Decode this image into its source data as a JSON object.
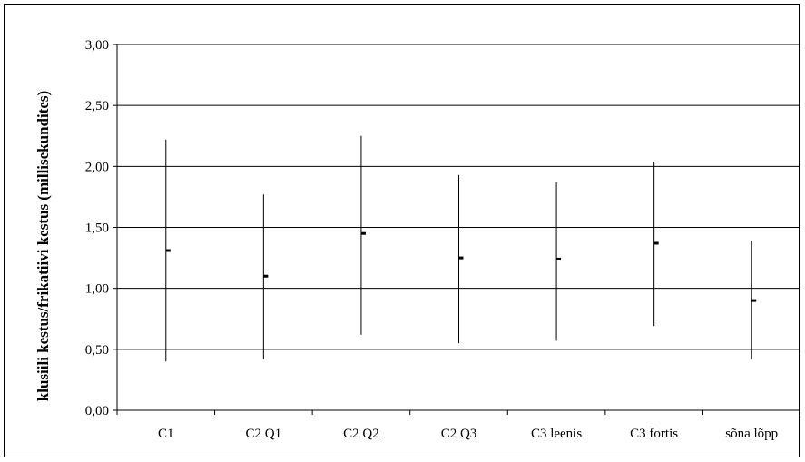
{
  "chart_data": {
    "type": "errorbar",
    "ylabel": "klusiili kestus/frikatiivi kestus (millisekundites)",
    "xlabel": "",
    "ylim": [
      0,
      3
    ],
    "ytick_step": 0.5,
    "ytick_labels": [
      "0,00",
      "0,50",
      "1,00",
      "1,50",
      "2,00",
      "2,50",
      "3,00"
    ],
    "grid": "horizontal",
    "categories": [
      "C1",
      "C2 Q1",
      "C2 Q2",
      "C2 Q3",
      "C3 leenis",
      "C3 fortis",
      "sõna lõpp"
    ],
    "mean": [
      1.31,
      1.1,
      1.45,
      1.25,
      1.24,
      1.37,
      0.9
    ],
    "low": [
      0.4,
      0.42,
      0.62,
      0.55,
      0.57,
      0.69,
      0.42
    ],
    "high": [
      2.22,
      1.77,
      2.25,
      1.93,
      1.87,
      2.04,
      1.39
    ],
    "colors": {
      "line": "#000000",
      "grid": "#000000",
      "background": "#ffffff"
    }
  }
}
